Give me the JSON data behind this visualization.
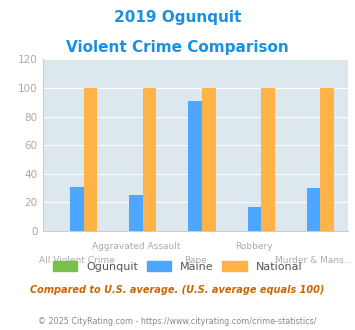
{
  "title_line1": "2019 Ogunquit",
  "title_line2": "Violent Crime Comparison",
  "categories_top": [
    "",
    "Aggravated Assault",
    "",
    "Robbery",
    ""
  ],
  "categories_bottom": [
    "All Violent Crime",
    "",
    "Rape",
    "",
    "Murder & Mans..."
  ],
  "ogunquit": [
    0,
    0,
    0,
    0,
    0
  ],
  "maine": [
    31,
    25,
    91,
    17,
    30
  ],
  "national": [
    100,
    100,
    100,
    100,
    100
  ],
  "color_ogunquit": "#78c04b",
  "color_maine": "#4da6ff",
  "color_national": "#ffb347",
  "color_title": "#1a90e0",
  "color_bg_chart": "#dde8ee",
  "color_grid": "#ffffff",
  "color_axis_text": "#aaaaaa",
  "color_footnote1": "#cc6600",
  "color_footnote2": "#888888",
  "ylim": [
    0,
    120
  ],
  "yticks": [
    0,
    20,
    40,
    60,
    80,
    100,
    120
  ],
  "footnote1": "Compared to U.S. average. (U.S. average equals 100)",
  "footnote2": "© 2025 CityRating.com - https://www.cityrating.com/crime-statistics/",
  "legend_labels": [
    "Ogunquit",
    "Maine",
    "National"
  ]
}
